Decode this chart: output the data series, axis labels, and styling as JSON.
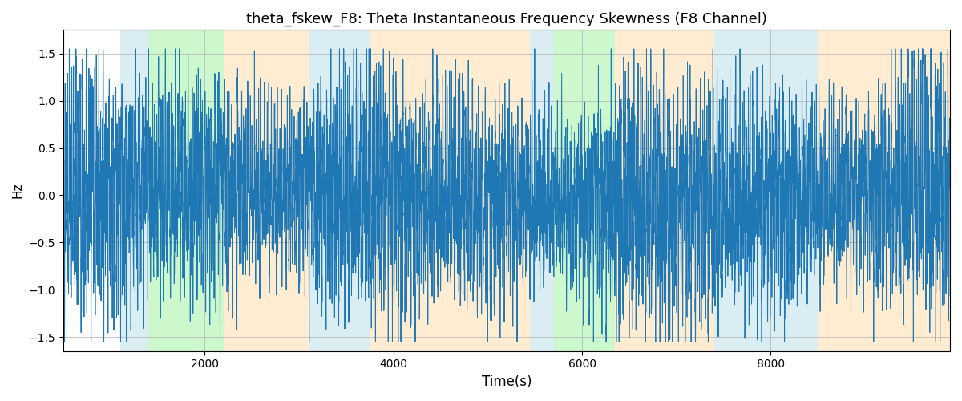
{
  "title": "theta_fskew_F8: Theta Instantaneous Frequency Skewness (F8 Channel)",
  "xlabel": "Time(s)",
  "ylabel": "Hz",
  "xlim": [
    500,
    9900
  ],
  "ylim": [
    -1.65,
    1.75
  ],
  "line_color": "#1f77b4",
  "line_width": 0.7,
  "background_color": "#ffffff",
  "grid_color": "#b0b0b0",
  "colored_bands": [
    {
      "xmin": 1100,
      "xmax": 1400,
      "color": "#add8e6",
      "alpha": 0.45
    },
    {
      "xmin": 1400,
      "xmax": 2200,
      "color": "#90ee90",
      "alpha": 0.45
    },
    {
      "xmin": 2200,
      "xmax": 3100,
      "color": "#ffd59a",
      "alpha": 0.45
    },
    {
      "xmin": 3100,
      "xmax": 3500,
      "color": "#add8e6",
      "alpha": 0.45
    },
    {
      "xmin": 3500,
      "xmax": 3750,
      "color": "#add8e6",
      "alpha": 0.45
    },
    {
      "xmin": 3750,
      "xmax": 5450,
      "color": "#ffd59a",
      "alpha": 0.45
    },
    {
      "xmin": 5450,
      "xmax": 5700,
      "color": "#add8e6",
      "alpha": 0.45
    },
    {
      "xmin": 5700,
      "xmax": 6350,
      "color": "#90ee90",
      "alpha": 0.45
    },
    {
      "xmin": 6350,
      "xmax": 7400,
      "color": "#ffd59a",
      "alpha": 0.45
    },
    {
      "xmin": 7400,
      "xmax": 8500,
      "color": "#add8e6",
      "alpha": 0.45
    },
    {
      "xmin": 8500,
      "xmax": 9900,
      "color": "#ffd59a",
      "alpha": 0.45
    }
  ],
  "xticks": [
    2000,
    4000,
    6000,
    8000
  ],
  "yticks": [
    -1.5,
    -1.0,
    -0.5,
    0.0,
    0.5,
    1.0,
    1.5
  ],
  "seed": 42,
  "n_points": 9901,
  "title_fontsize": 13,
  "signal_freq_base": 25,
  "signal_amplitude": 1.35
}
